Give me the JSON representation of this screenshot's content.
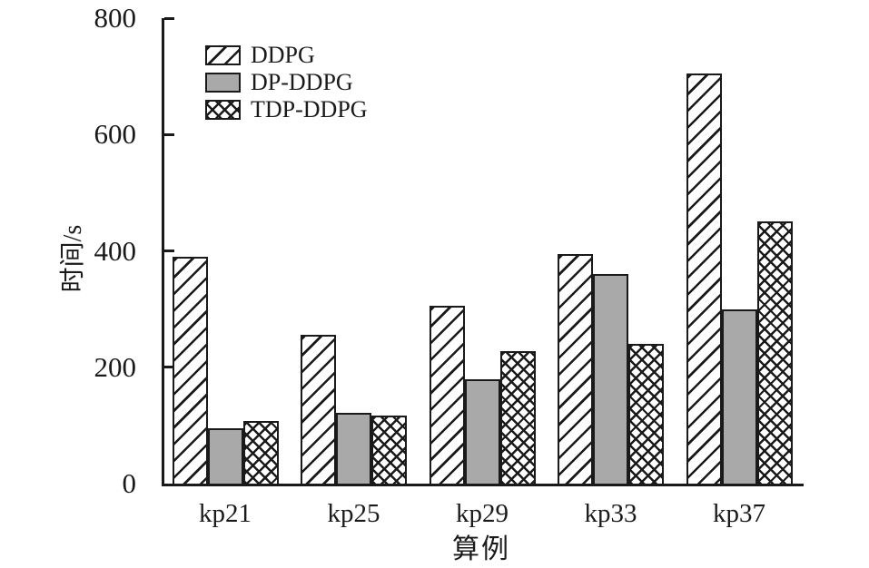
{
  "chart_data": {
    "type": "bar",
    "title": "",
    "xlabel": "算例",
    "ylabel": "时间/s",
    "categories": [
      "kp21",
      "kp25",
      "kp29",
      "kp33",
      "kp37"
    ],
    "series": [
      {
        "name": "DDPG",
        "pattern": "diagonal-hatch",
        "values": [
          390,
          255,
          305,
          395,
          705
        ]
      },
      {
        "name": "DP-DDPG",
        "pattern": "solid-gray",
        "color": "#a9a9a9",
        "values": [
          95,
          122,
          180,
          360,
          300
        ]
      },
      {
        "name": "TDP-DDPG",
        "pattern": "crosshatch",
        "values": [
          107,
          117,
          227,
          240,
          450
        ]
      }
    ],
    "ylim": [
      0,
      800
    ],
    "yticks": [
      0,
      200,
      400,
      600,
      800
    ],
    "grid": false,
    "legend_position": "upper-left-inside"
  },
  "colors": {
    "axis_and_hatch_line": "#1a1a1a",
    "bar_gray_fill": "#a9a9a9",
    "background": "#ffffff"
  }
}
